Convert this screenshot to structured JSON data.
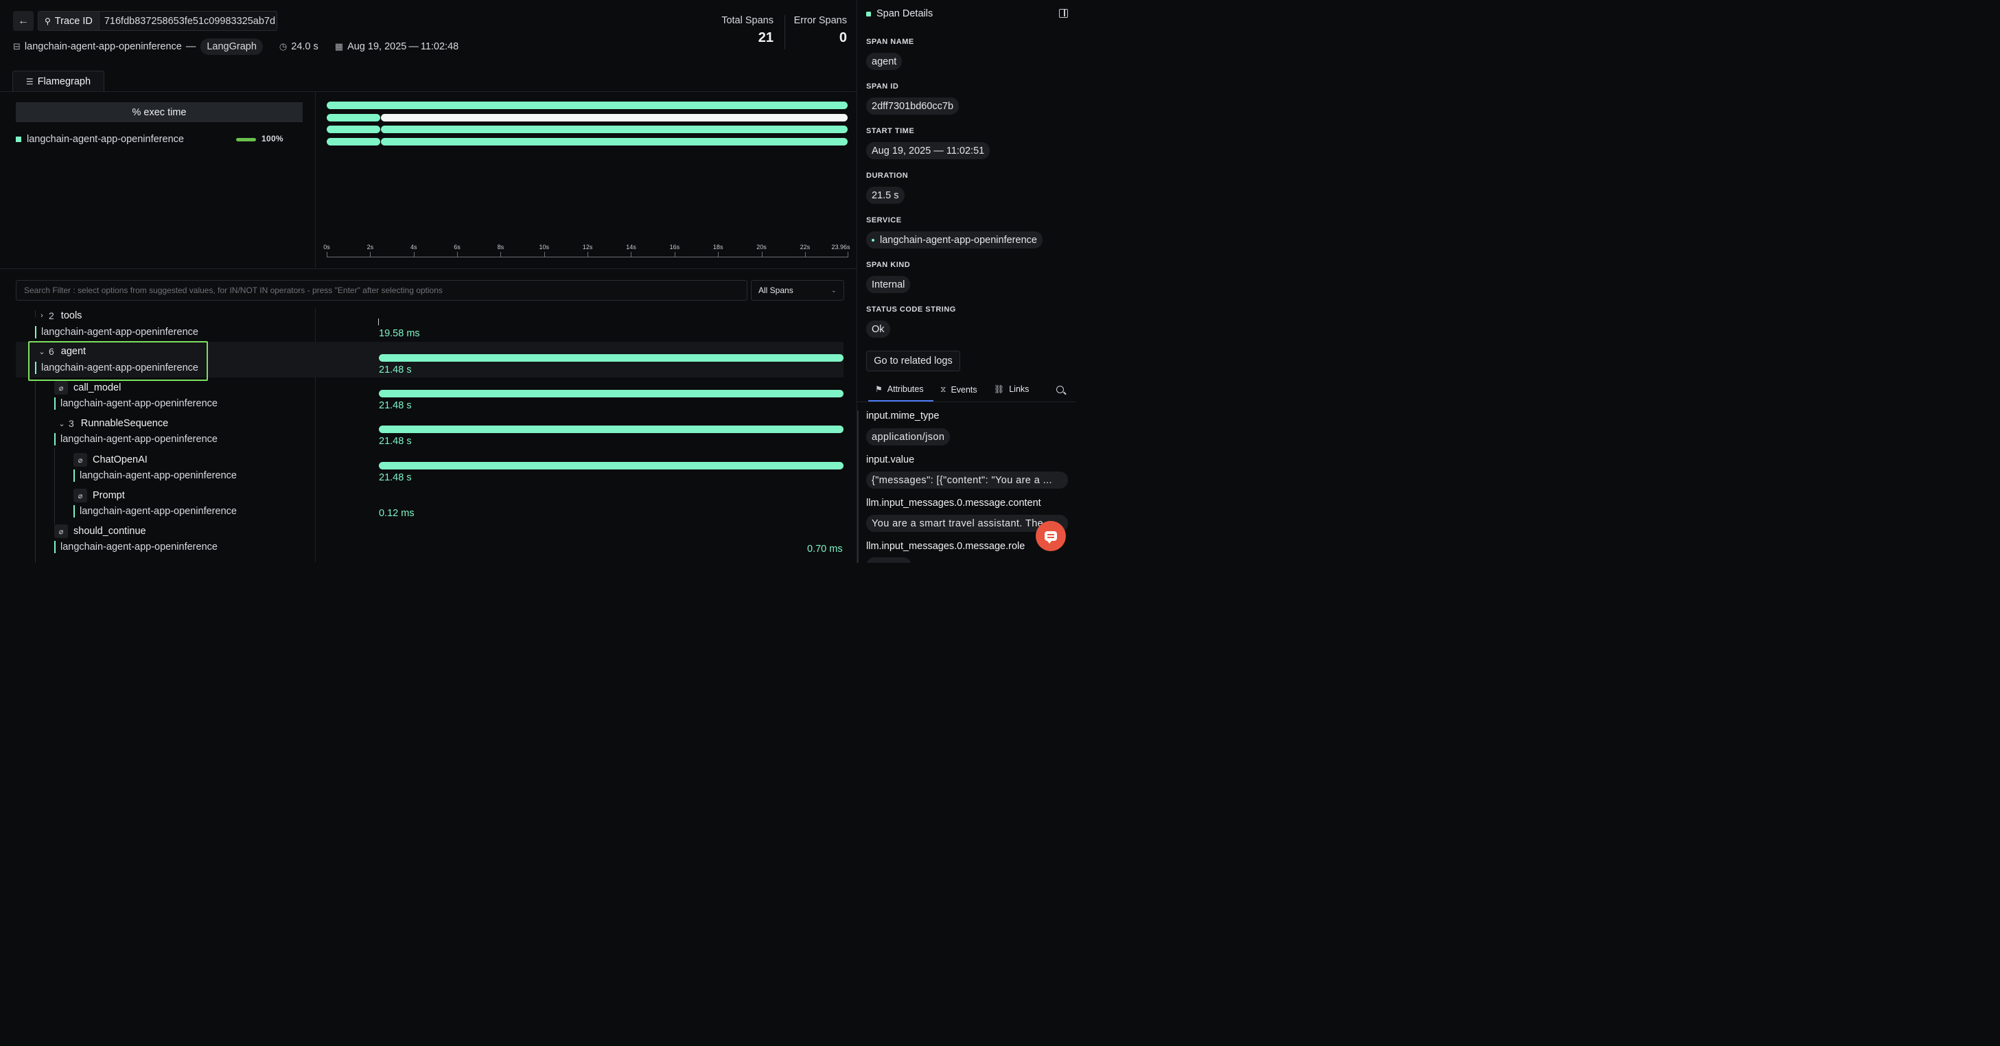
{
  "header": {
    "back_icon": "arrow-left-icon",
    "trace_label": "Trace ID",
    "trace_id": "716fdb837258653fe51c09983325ab7d",
    "service_name": "langchain-agent-app-openinference",
    "separator": "—",
    "framework": "LangGraph",
    "duration": "24.0 s",
    "date": "Aug 19, 2025",
    "time": "11:02:48",
    "total_spans_label": "Total Spans",
    "total_spans": "21",
    "error_spans_label": "Error Spans",
    "error_spans": "0"
  },
  "tabs": {
    "flamegraph": "Flamegraph"
  },
  "flamegraph": {
    "exec_header": "% exec time",
    "service": "langchain-agent-app-openinference",
    "percent": "100%",
    "service_color": "#7ff5c7",
    "axis_ticks": [
      "0s",
      "2s",
      "4s",
      "6s",
      "8s",
      "10s",
      "12s",
      "14s",
      "16s",
      "18s",
      "20s",
      "22s",
      "23.96s"
    ],
    "axis_values": [
      0,
      2,
      4,
      6,
      8,
      10,
      12,
      14,
      16,
      18,
      20,
      22,
      23.96
    ],
    "axis_max": 23.96,
    "lanes": [
      [
        {
          "start": 0,
          "end": 23.96,
          "color": "#7ff5c7"
        }
      ],
      [
        {
          "start": 0,
          "end": 2.45,
          "color": "#7ff5c7"
        },
        {
          "start": 2.48,
          "end": 23.96,
          "color": "#f4f6f5"
        }
      ],
      [
        {
          "start": 0,
          "end": 2.45,
          "color": "#7ff5c7"
        },
        {
          "start": 2.48,
          "end": 23.96,
          "color": "#7ff5c7"
        }
      ],
      [
        {
          "start": 0,
          "end": 2.45,
          "color": "#7ff5c7"
        },
        {
          "start": 2.48,
          "end": 23.96,
          "color": "#7ff5c7"
        }
      ]
    ]
  },
  "filter": {
    "placeholder": "Search Filter : select options from suggested values, for IN/NOT IN operators - press \"Enter\" after selecting options",
    "select_value": "All Spans"
  },
  "spans": [
    {
      "name": "tools",
      "count": "2",
      "expanded": false,
      "service": "langchain-agent-app-openinference",
      "duration": "19.58 ms"
    },
    {
      "name": "agent",
      "count": "6",
      "expanded": true,
      "service": "langchain-agent-app-openinference",
      "duration": "21.48 s"
    },
    {
      "name": "call_model",
      "count": "",
      "expanded": false,
      "service": "langchain-agent-app-openinference",
      "duration": "21.48 s"
    },
    {
      "name": "RunnableSequence",
      "count": "3",
      "expanded": true,
      "service": "langchain-agent-app-openinference",
      "duration": "21.48 s"
    },
    {
      "name": "ChatOpenAI",
      "count": "",
      "expanded": false,
      "service": "langchain-agent-app-openinference",
      "duration": "21.48 s"
    },
    {
      "name": "Prompt",
      "count": "",
      "expanded": false,
      "service": "langchain-agent-app-openinference",
      "duration": "0.12 ms"
    },
    {
      "name": "should_continue",
      "count": "",
      "expanded": false,
      "service": "langchain-agent-app-openinference",
      "duration": "0.70 ms"
    }
  ],
  "details": {
    "title": "Span Details",
    "span_name_label": "SPAN NAME",
    "span_name": "agent",
    "span_id_label": "SPAN ID",
    "span_id": "2dff7301bd60cc7b",
    "start_time_label": "START TIME",
    "start_time": "Aug 19, 2025 — 11:02:51",
    "duration_label": "DURATION",
    "duration": "21.5 s",
    "service_label": "SERVICE",
    "service": "langchain-agent-app-openinference",
    "span_kind_label": "SPAN KIND",
    "span_kind": "Internal",
    "status_label": "STATUS CODE STRING",
    "status": "Ok",
    "logs_button": "Go to related logs",
    "tabs": [
      "Attributes",
      "Events",
      "Links"
    ],
    "attributes": [
      {
        "key": "input.mime_type",
        "value": "application/json"
      },
      {
        "key": "input.value",
        "value": "{\"messages\": [{\"content\": \"You are a ..."
      },
      {
        "key": "llm.input_messages.0.message.content",
        "value": "You are a smart travel assistant. The"
      },
      {
        "key": "llm.input_messages.0.message.role",
        "value": ""
      }
    ]
  }
}
